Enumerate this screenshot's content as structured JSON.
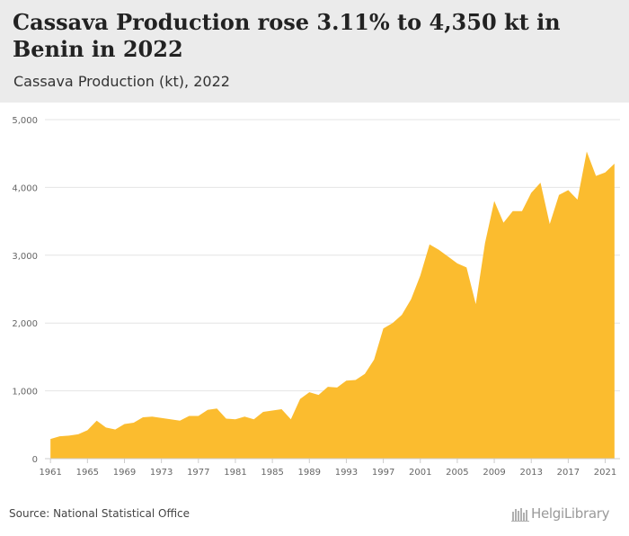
{
  "header": {
    "title": "Cassava Production rose 3.11% to 4,350 kt in Benin in 2022",
    "subtitle": "Cassava Production (kt), 2022"
  },
  "footer": {
    "source": "Source: National Statistical Office",
    "logo_text": "HelgiLibrary"
  },
  "colors": {
    "area_fill": "#fbbc2f",
    "grid": "#e4e4e4",
    "header_bg": "#ebebeb"
  },
  "chart_data": {
    "type": "area",
    "title": "",
    "xlabel": "",
    "ylabel": "",
    "ylim": [
      0,
      5000
    ],
    "yticks": [
      0,
      1000,
      2000,
      3000,
      4000,
      5000
    ],
    "ytick_labels": [
      "0",
      "1,000",
      "2,000",
      "3,000",
      "4,000",
      "5,000"
    ],
    "xticks": [
      1961,
      1965,
      1969,
      1973,
      1977,
      1981,
      1985,
      1989,
      1993,
      1997,
      2001,
      2005,
      2009,
      2013,
      2017,
      2021
    ],
    "grid": true,
    "legend": "none",
    "x": [
      1961,
      1962,
      1963,
      1964,
      1965,
      1966,
      1967,
      1968,
      1969,
      1970,
      1971,
      1972,
      1973,
      1974,
      1975,
      1976,
      1977,
      1978,
      1979,
      1980,
      1981,
      1982,
      1983,
      1984,
      1985,
      1986,
      1987,
      1988,
      1989,
      1990,
      1991,
      1992,
      1993,
      1994,
      1995,
      1996,
      1997,
      1998,
      1999,
      2000,
      2001,
      2002,
      2003,
      2004,
      2005,
      2006,
      2007,
      2008,
      2009,
      2010,
      2011,
      2012,
      2013,
      2014,
      2015,
      2016,
      2017,
      2018,
      2019,
      2020,
      2021,
      2022
    ],
    "series": [
      {
        "values": [
          290,
          330,
          340,
          360,
          420,
          560,
          460,
          430,
          510,
          530,
          610,
          620,
          600,
          580,
          560,
          630,
          630,
          720,
          740,
          590,
          580,
          620,
          580,
          690,
          710,
          730,
          580,
          880,
          980,
          940,
          1060,
          1050,
          1150,
          1160,
          1250,
          1460,
          1920,
          2000,
          2120,
          2350,
          2700,
          3160,
          3080,
          2980,
          2880,
          2820,
          2280,
          3180,
          3800,
          3480,
          3650,
          3650,
          3920,
          4070,
          3460,
          3890,
          3960,
          3820,
          4530,
          4170,
          4220,
          4350
        ]
      }
    ]
  }
}
